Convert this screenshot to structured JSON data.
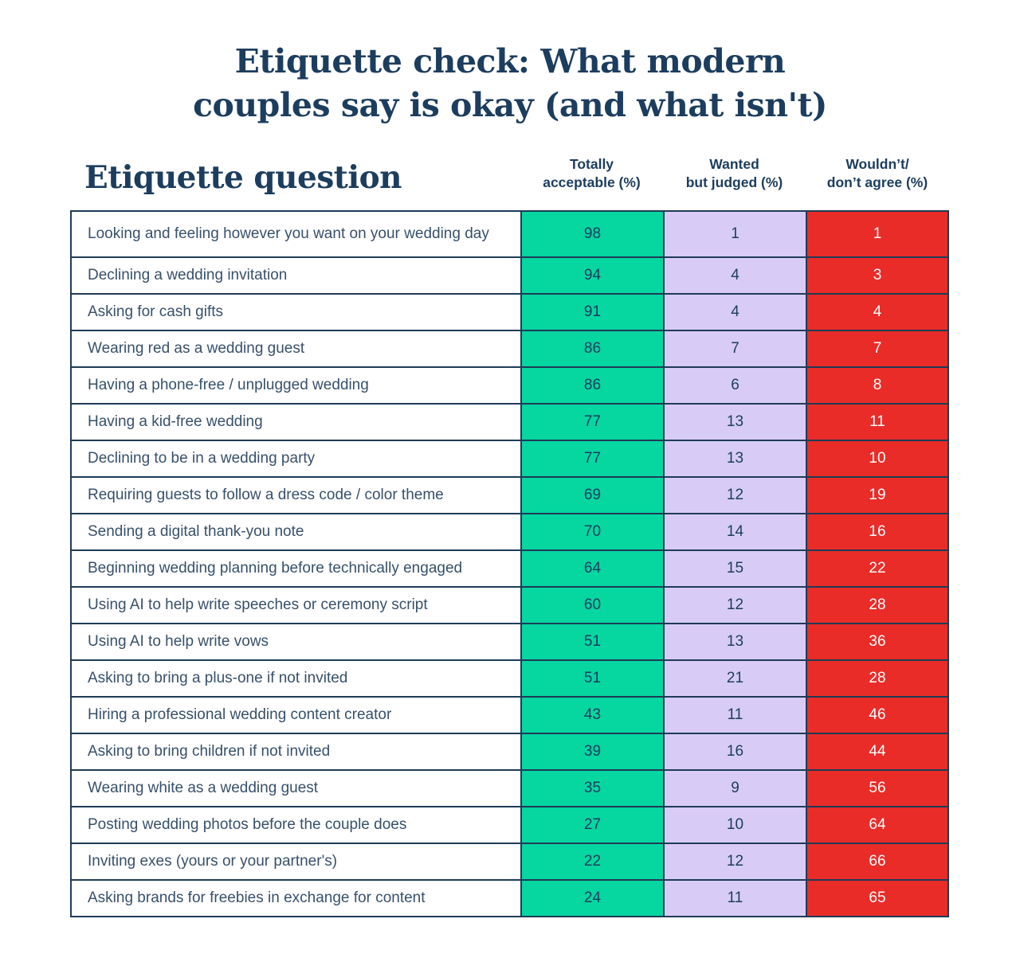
{
  "title": {
    "line1": "Etiquette check: What modern",
    "line2": "couples say is okay (and what isn't)"
  },
  "table_header": {
    "question_label": "Etiquette question",
    "col1_line1": "Totally",
    "col1_line2": "acceptable (%)",
    "col2_line1": "Wanted",
    "col2_line2": "but judged (%)",
    "col3_line1": "Wouldn’t/",
    "col3_line2": "don’t agree (%)"
  },
  "colors": {
    "green": "#06D6A0",
    "lavender": "#D8CCF6",
    "red": "#E92C28",
    "navy_text": "#1C3D5E",
    "question_text": "#37506A",
    "border": "#1E3B57",
    "red_cell_text": "#FFFFFF"
  },
  "chart_data": {
    "type": "table",
    "title": "Etiquette check: What modern couples say is okay (and what isn't)",
    "columns": [
      "Etiquette question",
      "Totally acceptable (%)",
      "Wanted but judged (%)",
      "Wouldn't/don't agree (%)"
    ],
    "rows": [
      {
        "question": "Looking and feeling however you want on your wedding day",
        "totally_acceptable": 98,
        "wanted_but_judged": 1,
        "wouldnt_agree": 1
      },
      {
        "question": "Declining a wedding invitation",
        "totally_acceptable": 94,
        "wanted_but_judged": 4,
        "wouldnt_agree": 3
      },
      {
        "question": "Asking for cash gifts",
        "totally_acceptable": 91,
        "wanted_but_judged": 4,
        "wouldnt_agree": 4
      },
      {
        "question": "Wearing red as a wedding guest",
        "totally_acceptable": 86,
        "wanted_but_judged": 7,
        "wouldnt_agree": 7
      },
      {
        "question": "Having a phone-free / unplugged wedding",
        "totally_acceptable": 86,
        "wanted_but_judged": 6,
        "wouldnt_agree": 8
      },
      {
        "question": "Having a kid-free wedding",
        "totally_acceptable": 77,
        "wanted_but_judged": 13,
        "wouldnt_agree": 11
      },
      {
        "question": "Declining to be in a wedding party",
        "totally_acceptable": 77,
        "wanted_but_judged": 13,
        "wouldnt_agree": 10
      },
      {
        "question": "Requiring guests to follow a dress code / color theme",
        "totally_acceptable": 69,
        "wanted_but_judged": 12,
        "wouldnt_agree": 19
      },
      {
        "question": "Sending a digital thank-you note",
        "totally_acceptable": 70,
        "wanted_but_judged": 14,
        "wouldnt_agree": 16
      },
      {
        "question": "Beginning wedding planning before technically engaged",
        "totally_acceptable": 64,
        "wanted_but_judged": 15,
        "wouldnt_agree": 22
      },
      {
        "question": "Using AI to help write speeches or ceremony script",
        "totally_acceptable": 60,
        "wanted_but_judged": 12,
        "wouldnt_agree": 28
      },
      {
        "question": "Using AI to help write vows",
        "totally_acceptable": 51,
        "wanted_but_judged": 13,
        "wouldnt_agree": 36
      },
      {
        "question": "Asking to bring a plus-one if not invited",
        "totally_acceptable": 51,
        "wanted_but_judged": 21,
        "wouldnt_agree": 28
      },
      {
        "question": "Hiring a professional wedding content creator",
        "totally_acceptable": 43,
        "wanted_but_judged": 11,
        "wouldnt_agree": 46
      },
      {
        "question": "Asking to bring children if not invited",
        "totally_acceptable": 39,
        "wanted_but_judged": 16,
        "wouldnt_agree": 44
      },
      {
        "question": "Wearing white as a wedding guest",
        "totally_acceptable": 35,
        "wanted_but_judged": 9,
        "wouldnt_agree": 56
      },
      {
        "question": "Posting wedding photos before the couple does",
        "totally_acceptable": 27,
        "wanted_but_judged": 10,
        "wouldnt_agree": 64
      },
      {
        "question": "Inviting exes (yours or your partner's)",
        "totally_acceptable": 22,
        "wanted_but_judged": 12,
        "wouldnt_agree": 66
      },
      {
        "question": "Asking brands for freebies in exchange for content",
        "totally_acceptable": 24,
        "wanted_but_judged": 11,
        "wouldnt_agree": 65
      }
    ]
  }
}
